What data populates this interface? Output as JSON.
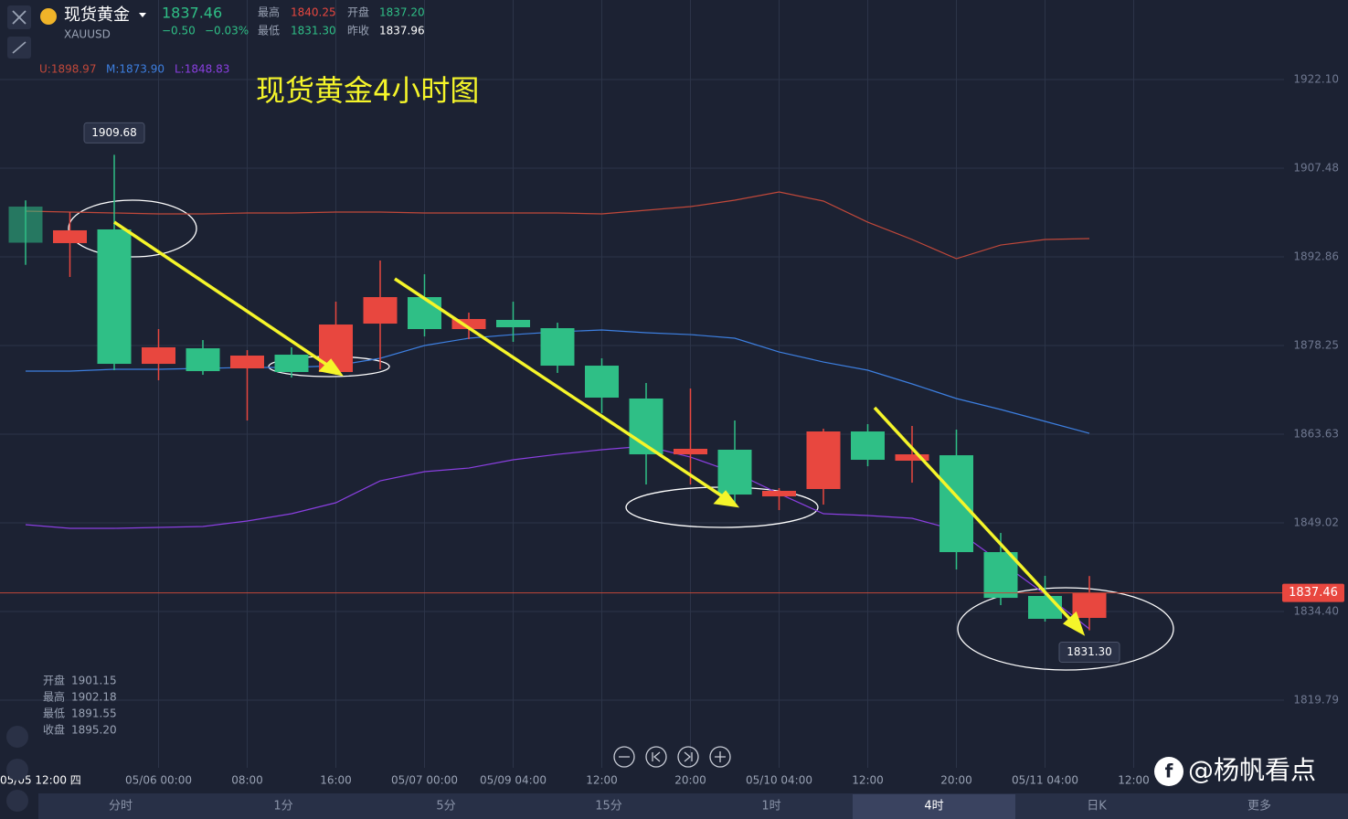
{
  "header": {
    "name": "现货黄金",
    "symbol": "XAUUSD",
    "price": "1837.46",
    "change": "−0.50",
    "change_pct": "−0.03%",
    "stats": [
      {
        "label": "最高",
        "value": "1840.25"
      },
      {
        "label": "开盘",
        "value": "1837.20"
      },
      {
        "label": "最低",
        "value": "1831.30"
      },
      {
        "label": "昨收",
        "value": "1837.96"
      }
    ]
  },
  "indicators": [
    "U:1898.97",
    "M:1873.90",
    "L:1848.83"
  ],
  "info": [
    {
      "label": "开盘",
      "value": "1901.15"
    },
    {
      "label": "最高",
      "value": "1902.18"
    },
    {
      "label": "最低",
      "value": "1891.55"
    },
    {
      "label": "收盘",
      "value": "1895.20"
    }
  ],
  "tabs": [
    "分时",
    "1分",
    "5分",
    "15分",
    "1时",
    "4时",
    "日K",
    "更多"
  ],
  "active_tab": 5,
  "watermark": "@杨帆看点",
  "chart_data": {
    "type": "candlestick",
    "title": "现货黄金4小时图",
    "up_color": "#e8473f",
    "down_color": "#2fbf86",
    "open": [
      1901.15,
      1895.13,
      1897.39,
      1875.23,
      1877.79,
      1874.48,
      1876.74,
      1873.88,
      1881.86,
      1886.23,
      1880.96,
      1882.47,
      1881.11,
      1874.93,
      1869.51,
      1860.31,
      1861.07,
      1853.38,
      1854.59,
      1864.08,
      1859.26,
      1860.16,
      1844.19,
      1836.96,
      1833.34
    ],
    "high": [
      1902.18,
      1900.25,
      1909.68,
      1880.96,
      1879.15,
      1877.49,
      1877.95,
      1885.48,
      1892.26,
      1890.0,
      1883.67,
      1885.48,
      1882.01,
      1876.14,
      1872.07,
      1871.16,
      1865.89,
      1854.74,
      1864.53,
      1865.29,
      1864.99,
      1864.38,
      1847.35,
      1840.28,
      1840.25
    ],
    "low": [
      1891.55,
      1889.55,
      1874.18,
      1872.52,
      1873.42,
      1865.89,
      1872.97,
      1873.42,
      1874.33,
      1879.75,
      1879.3,
      1878.85,
      1873.73,
      1867.1,
      1855.34,
      1855.34,
      1852.02,
      1851.12,
      1852.02,
      1858.35,
      1855.64,
      1841.33,
      1835.45,
      1832.74,
      1831.3
    ],
    "close": [
      1895.2,
      1897.24,
      1875.23,
      1877.95,
      1874.03,
      1876.59,
      1873.88,
      1881.71,
      1886.23,
      1880.96,
      1882.62,
      1881.26,
      1874.93,
      1869.66,
      1860.31,
      1861.22,
      1853.68,
      1854.29,
      1864.08,
      1859.41,
      1860.31,
      1844.19,
      1836.65,
      1833.19,
      1837.46
    ],
    "bands": [
      {
        "name": "U",
        "color": "#c0483a",
        "values": [
          1900.4,
          1900.25,
          1900.1,
          1899.95,
          1899.95,
          1900.1,
          1900.1,
          1900.25,
          1900.25,
          1900.1,
          1900.1,
          1900.1,
          1900.1,
          1899.95,
          1900.55,
          1901.15,
          1902.21,
          1903.56,
          1902.06,
          1898.59,
          1895.73,
          1892.56,
          1894.82,
          1895.73,
          1895.88
        ]
      },
      {
        "name": "M",
        "color": "#3d7fe0",
        "values": [
          1874.03,
          1874.03,
          1874.33,
          1874.33,
          1874.48,
          1874.63,
          1874.63,
          1874.93,
          1876.14,
          1878.25,
          1879.45,
          1880.05,
          1880.51,
          1880.81,
          1880.36,
          1880.05,
          1879.45,
          1877.19,
          1875.53,
          1874.18,
          1871.92,
          1869.51,
          1867.7,
          1865.74,
          1863.78
        ]
      },
      {
        "name": "L",
        "color": "#8a3fe0",
        "values": [
          1848.71,
          1848.11,
          1848.11,
          1848.26,
          1848.41,
          1849.32,
          1850.52,
          1852.33,
          1855.94,
          1857.45,
          1858.05,
          1859.41,
          1860.31,
          1861.07,
          1861.67,
          1859.86,
          1857.3,
          1853.83,
          1850.52,
          1850.22,
          1849.77,
          1847.8,
          1842.53,
          1837.26,
          1831.53
        ]
      }
    ],
    "ylim": [
      1808.63,
      1935.21
    ],
    "yticks": [
      {
        "value": 1922.1,
        "label": "1922.10"
      },
      {
        "value": 1907.48,
        "label": "1907.48"
      },
      {
        "value": 1892.86,
        "label": "1892.86"
      },
      {
        "value": 1878.25,
        "label": "1878.25"
      },
      {
        "value": 1863.63,
        "label": "1863.63"
      },
      {
        "value": 1849.02,
        "label": "1849.02"
      },
      {
        "value": 1834.4,
        "label": "1834.40"
      },
      {
        "value": 1819.79,
        "label": "1819.79"
      }
    ],
    "x_labels": [
      "05/05 12:00 四",
      "05/06 00:00",
      "08:00",
      "16:00",
      "05/07 00:00",
      "05/09 04:00",
      "12:00",
      "20:00",
      "05/10 04:00",
      "12:00",
      "20:00",
      "05/11 04:00",
      "12:00"
    ],
    "last_price": {
      "value": 1837.46,
      "label": "1837.46"
    },
    "annotations": [
      {
        "value": 1909.68,
        "label": "1909.68"
      },
      {
        "value": 1831.3,
        "label": "1831.30"
      }
    ],
    "grid": true
  }
}
